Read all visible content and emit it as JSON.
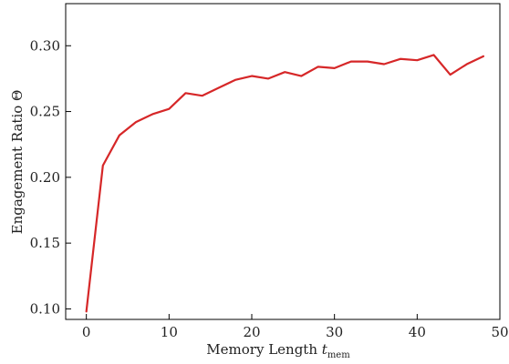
{
  "chart_data": {
    "type": "line",
    "title": "",
    "xlabel": "Memory Length",
    "xlabel_symbol": "t",
    "xlabel_subscript": "mem",
    "ylabel": "Engagement Ratio Θ",
    "xlim": [
      -2.5,
      50
    ],
    "ylim": [
      0.092,
      0.332
    ],
    "xticks": [
      0,
      10,
      20,
      30,
      40,
      50
    ],
    "yticks": [
      0.1,
      0.15,
      0.2,
      0.25,
      0.3
    ],
    "xtick_labels": [
      "0",
      "10",
      "20",
      "30",
      "40",
      "50"
    ],
    "ytick_labels": [
      "0.10",
      "0.15",
      "0.20",
      "0.25",
      "0.30"
    ],
    "grid": false,
    "color": "#d62728",
    "series": [
      {
        "x": [
          0,
          2,
          4,
          6,
          8,
          10,
          12,
          14,
          16,
          18,
          20,
          22,
          24,
          26,
          28,
          30,
          32,
          34,
          36,
          38,
          40,
          42,
          44,
          46,
          48
        ],
        "values": [
          0.098,
          0.209,
          0.232,
          0.242,
          0.248,
          0.252,
          0.264,
          0.262,
          0.268,
          0.274,
          0.277,
          0.275,
          0.28,
          0.277,
          0.284,
          0.283,
          0.288,
          0.288,
          0.286,
          0.29,
          0.289,
          0.293,
          0.278,
          0.286,
          0.292
        ]
      }
    ]
  }
}
